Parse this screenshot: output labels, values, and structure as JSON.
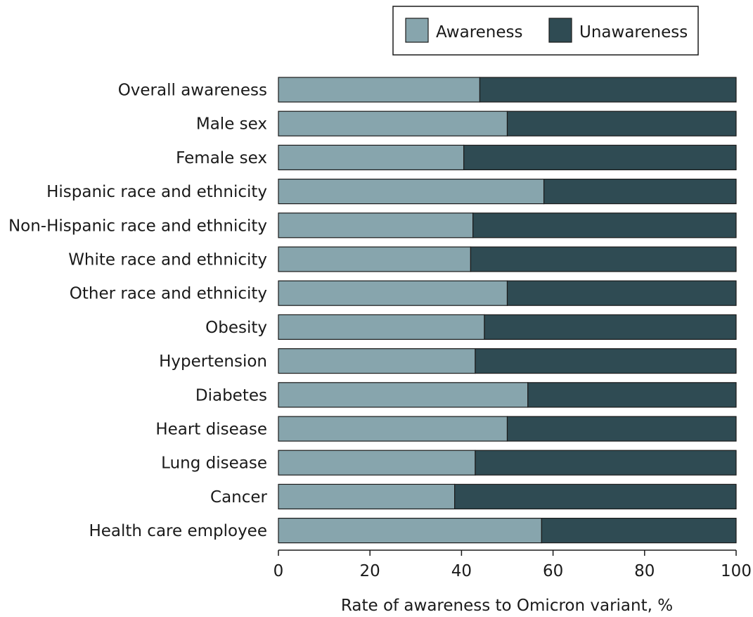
{
  "chart_data": {
    "type": "bar",
    "orientation": "horizontal",
    "stacked": true,
    "title": "",
    "xlabel": "Rate of awareness to Omicron variant, %",
    "ylabel": "",
    "xlim": [
      0,
      100
    ],
    "xticks": [
      0,
      20,
      40,
      60,
      80,
      100
    ],
    "legend_position": "top-right",
    "categories": [
      "Overall awareness",
      "Male sex",
      "Female sex",
      "Hispanic race and ethnicity",
      "Non-Hispanic race and ethnicity",
      "White race and ethnicity",
      "Other race and ethnicity",
      "Obesity",
      "Hypertension",
      "Diabetes",
      "Heart disease",
      "Lung disease",
      "Cancer",
      "Health care employee"
    ],
    "series": [
      {
        "name": "Awareness",
        "color": "#87a5ad",
        "values": [
          44.0,
          50.0,
          40.5,
          58.0,
          42.5,
          42.0,
          50.0,
          45.0,
          43.0,
          54.5,
          50.0,
          43.0,
          38.5,
          57.5
        ]
      },
      {
        "name": "Unawareness",
        "color": "#2f4b53",
        "values": [
          56.0,
          50.0,
          59.5,
          42.0,
          57.5,
          58.0,
          50.0,
          55.0,
          57.0,
          45.5,
          50.0,
          57.0,
          61.5,
          42.5
        ]
      }
    ]
  }
}
